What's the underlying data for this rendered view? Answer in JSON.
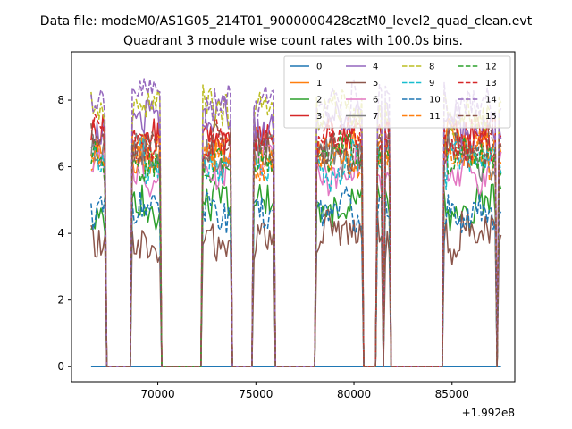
{
  "chart_data": {
    "type": "line",
    "suptitle": "Data file: modeM0/AS1G05_214T01_9000000428cztM0_level2_quad_clean.evt",
    "title": "Quadrant 3 module wise count rates with 100.0s bins.",
    "xlabel": "",
    "ylabel": "",
    "x_offset_label": "+1.992e8",
    "xlim": [
      65600,
      88200
    ],
    "ylim": [
      -0.45,
      9.45
    ],
    "xticks": [
      70000,
      75000,
      80000,
      85000
    ],
    "xtick_labels": [
      "70000",
      "75000",
      "80000",
      "85000"
    ],
    "yticks": [
      0,
      2,
      4,
      6,
      8
    ],
    "ytick_labels": [
      "0",
      "2",
      "4",
      "6",
      "8"
    ],
    "legend_position": "top-right",
    "on_intervals": [
      [
        66600,
        67300
      ],
      [
        68700,
        70100
      ],
      [
        72300,
        73700
      ],
      [
        74900,
        75900
      ],
      [
        78100,
        80400
      ],
      [
        81200,
        81400
      ],
      [
        81600,
        81800
      ],
      [
        84600,
        87200
      ],
      [
        87400,
        87500
      ]
    ],
    "series": [
      {
        "name": "0",
        "color": "#1f77b4",
        "dash": "solid",
        "level": 0.0
      },
      {
        "name": "1",
        "color": "#ff7f0e",
        "dash": "solid",
        "level": 6.6
      },
      {
        "name": "2",
        "color": "#2ca02c",
        "dash": "solid",
        "level": 4.7
      },
      {
        "name": "3",
        "color": "#d62728",
        "dash": "solid",
        "level": 6.7
      },
      {
        "name": "4",
        "color": "#9467bd",
        "dash": "solid",
        "level": 7.3
      },
      {
        "name": "5",
        "color": "#8c564b",
        "dash": "solid",
        "level": 3.9
      },
      {
        "name": "6",
        "color": "#e377c2",
        "dash": "solid",
        "level": 5.9
      },
      {
        "name": "7",
        "color": "#7f7f7f",
        "dash": "solid",
        "level": 6.3
      },
      {
        "name": "8",
        "color": "#bcbd22",
        "dash": "dashed",
        "level": 7.6
      },
      {
        "name": "9",
        "color": "#17becf",
        "dash": "dashed",
        "level": 6.1
      },
      {
        "name": "10",
        "color": "#1f77b4",
        "dash": "dashed",
        "level": 4.8
      },
      {
        "name": "11",
        "color": "#ff7f0e",
        "dash": "dashed",
        "level": 6.4
      },
      {
        "name": "12",
        "color": "#2ca02c",
        "dash": "dashed",
        "level": 6.2
      },
      {
        "name": "13",
        "color": "#d62728",
        "dash": "dashed",
        "level": 6.8
      },
      {
        "name": "14",
        "color": "#9467bd",
        "dash": "dashed",
        "level": 7.9
      },
      {
        "name": "15",
        "color": "#8c564b",
        "dash": "dashed",
        "level": 6.6
      }
    ]
  }
}
